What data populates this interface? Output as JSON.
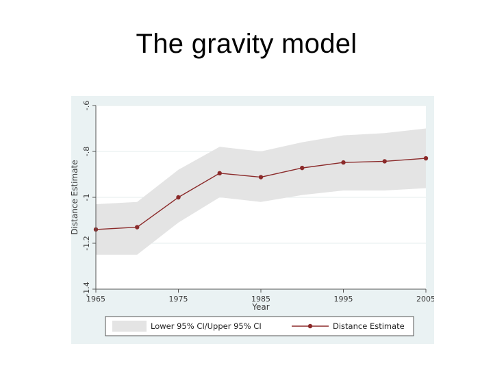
{
  "slide": {
    "title": "The gravity model"
  },
  "colors": {
    "outer_background": "#eaf2f3",
    "plot_background": "#ffffff",
    "ci_band": "#e4e4e4",
    "series": "#8b2a2a",
    "grid": "#e6ecee",
    "axis": "#555555"
  },
  "chart_data": {
    "type": "line",
    "xlabel": "Year",
    "ylabel": "Distance Estimate",
    "xlim": [
      1965,
      2005
    ],
    "ylim": [
      -1.4,
      -0.6
    ],
    "x_ticks": [
      1965,
      1975,
      1985,
      1995,
      2005
    ],
    "y_ticks": [
      -1.4,
      -1.2,
      -1,
      -0.8,
      -0.6
    ],
    "y_tick_labels": [
      "-1.4",
      "-1.2",
      "-1",
      "-.8",
      "-.6"
    ],
    "grid": true,
    "legend_position": "bottom",
    "x": [
      1965,
      1970,
      1975,
      1980,
      1985,
      1990,
      1995,
      2000,
      2005
    ],
    "series": [
      {
        "name": "Distance Estimate",
        "type": "line",
        "values": [
          -1.14,
          -1.13,
          -1.0,
          -0.895,
          -0.912,
          -0.872,
          -0.848,
          -0.843,
          -0.83
        ]
      },
      {
        "name": "Lower 95% CI/Upper 95% CI",
        "type": "area-range",
        "lower": [
          -1.25,
          -1.25,
          -1.11,
          -1.0,
          -1.02,
          -0.99,
          -0.97,
          -0.97,
          -0.96
        ],
        "upper": [
          -1.03,
          -1.02,
          -0.88,
          -0.78,
          -0.8,
          -0.76,
          -0.73,
          -0.72,
          -0.7
        ]
      }
    ]
  }
}
